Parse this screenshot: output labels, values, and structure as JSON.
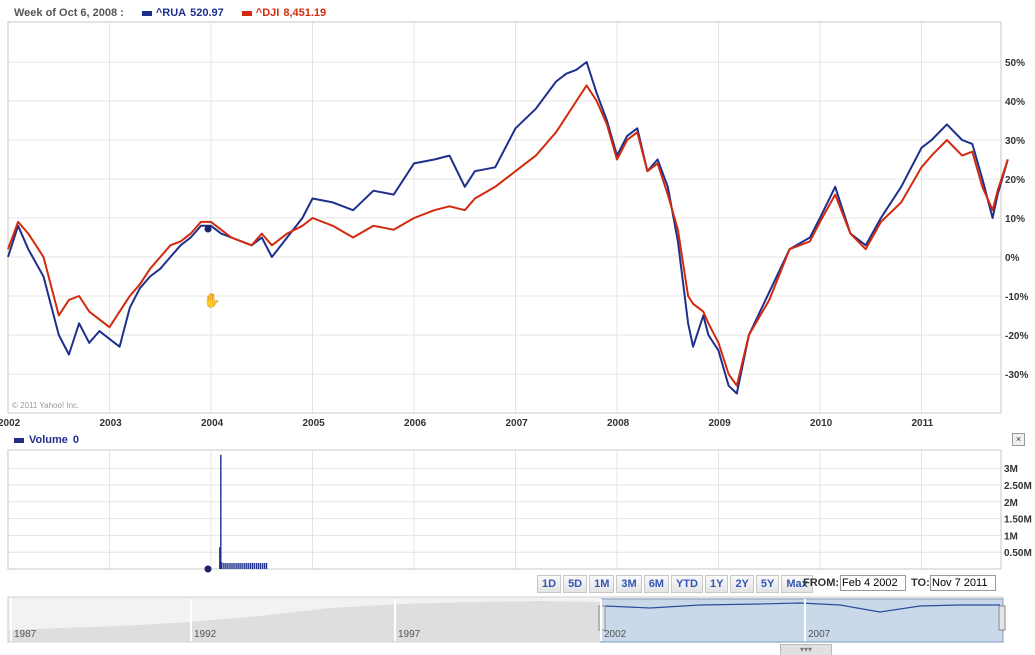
{
  "legend": {
    "period": "Week of Oct 6, 2008 :",
    "series": [
      {
        "label": "^RUA",
        "value": "520.97",
        "color": "#1f2f8c"
      },
      {
        "label": "^DJI",
        "value": "8,451.19",
        "color": "#d32a0e"
      }
    ]
  },
  "copyright": "© 2011 Yahoo! Inc.",
  "volume": {
    "label": "Volume",
    "value": "0",
    "close_label": "×"
  },
  "range_buttons": [
    "1D",
    "5D",
    "1M",
    "3M",
    "6M",
    "YTD",
    "1Y",
    "2Y",
    "5Y",
    "Max"
  ],
  "date_range": {
    "from_label": "FROM:",
    "from_value": "Feb 4 2002",
    "to_label": "TO:",
    "to_value": "Nov 7 2011"
  },
  "navigator": {
    "labels": [
      "1987",
      "1992",
      "1997",
      "2002",
      "2007"
    ]
  },
  "chart_data": [
    {
      "type": "line",
      "title": "",
      "xlabel": "",
      "ylabel": "",
      "x_ticks": [
        "2002",
        "2003",
        "2004",
        "2005",
        "2006",
        "2007",
        "2008",
        "2009",
        "2010",
        "2011"
      ],
      "y_ticks": [
        "50%",
        "40%",
        "30%",
        "20%",
        "10%",
        "0%",
        "-10%",
        "-20%",
        "-30%"
      ],
      "ylim": [
        -40,
        60
      ],
      "xlim": [
        2002.0,
        2011.85
      ],
      "grid": true,
      "series": [
        {
          "name": "^RUA",
          "color": "#1f2f8c",
          "x": [
            2002.0,
            2002.1,
            2002.2,
            2002.35,
            2002.5,
            2002.6,
            2002.7,
            2002.8,
            2002.9,
            2003.0,
            2003.1,
            2003.2,
            2003.3,
            2003.4,
            2003.5,
            2003.6,
            2003.7,
            2003.8,
            2003.9,
            2004.0,
            2004.1,
            2004.2,
            2004.4,
            2004.5,
            2004.6,
            2004.75,
            2004.9,
            2005.0,
            2005.2,
            2005.4,
            2005.6,
            2005.8,
            2006.0,
            2006.2,
            2006.35,
            2006.5,
            2006.6,
            2006.8,
            2007.0,
            2007.2,
            2007.4,
            2007.5,
            2007.6,
            2007.7,
            2007.8,
            2007.9,
            2008.0,
            2008.1,
            2008.2,
            2008.3,
            2008.4,
            2008.5,
            2008.6,
            2008.7,
            2008.75,
            2008.85,
            2008.9,
            2009.0,
            2009.1,
            2009.18,
            2009.3,
            2009.5,
            2009.7,
            2009.9,
            2010.0,
            2010.15,
            2010.3,
            2010.45,
            2010.6,
            2010.8,
            2011.0,
            2011.1,
            2011.25,
            2011.4,
            2011.5,
            2011.6,
            2011.7,
            2011.75,
            2011.85
          ],
          "values": [
            0,
            8,
            2,
            -5,
            -20,
            -25,
            -17,
            -22,
            -19,
            -21,
            -23,
            -13,
            -8,
            -5,
            -3,
            0,
            3,
            5,
            8,
            8,
            6,
            5,
            3,
            5,
            0,
            5,
            10,
            15,
            14,
            12,
            17,
            16,
            24,
            25,
            26,
            18,
            22,
            23,
            33,
            38,
            45,
            47,
            48,
            50,
            42,
            35,
            26,
            31,
            33,
            22,
            25,
            18,
            4,
            -17,
            -23,
            -15,
            -20,
            -24,
            -33,
            -35,
            -20,
            -9,
            2,
            5,
            10,
            18,
            6,
            3,
            10,
            18,
            28,
            30,
            34,
            30,
            29,
            20,
            10,
            16,
            25
          ]
        },
        {
          "name": "^DJI",
          "color": "#d32a0e",
          "x": [
            2002.0,
            2002.1,
            2002.2,
            2002.35,
            2002.5,
            2002.6,
            2002.7,
            2002.8,
            2002.9,
            2003.0,
            2003.1,
            2003.2,
            2003.3,
            2003.4,
            2003.5,
            2003.6,
            2003.7,
            2003.8,
            2003.9,
            2004.0,
            2004.1,
            2004.2,
            2004.4,
            2004.5,
            2004.6,
            2004.75,
            2004.9,
            2005.0,
            2005.2,
            2005.4,
            2005.6,
            2005.8,
            2006.0,
            2006.2,
            2006.35,
            2006.5,
            2006.6,
            2006.8,
            2007.0,
            2007.2,
            2007.4,
            2007.5,
            2007.6,
            2007.7,
            2007.8,
            2007.9,
            2008.0,
            2008.1,
            2008.2,
            2008.3,
            2008.4,
            2008.5,
            2008.6,
            2008.7,
            2008.75,
            2008.85,
            2008.9,
            2009.0,
            2009.1,
            2009.18,
            2009.3,
            2009.5,
            2009.7,
            2009.9,
            2010.0,
            2010.15,
            2010.3,
            2010.45,
            2010.6,
            2010.8,
            2011.0,
            2011.1,
            2011.25,
            2011.4,
            2011.5,
            2011.6,
            2011.7,
            2011.75,
            2011.85
          ],
          "values": [
            2,
            9,
            6,
            0,
            -15,
            -11,
            -10,
            -14,
            -16,
            -18,
            -14,
            -10,
            -7,
            -3,
            0,
            3,
            4,
            6,
            9,
            9,
            7,
            5,
            3,
            6,
            3,
            6,
            8,
            10,
            8,
            5,
            8,
            7,
            10,
            12,
            13,
            12,
            15,
            18,
            22,
            26,
            32,
            36,
            40,
            44,
            40,
            34,
            25,
            30,
            32,
            22,
            24,
            16,
            7,
            -10,
            -12,
            -14,
            -17,
            -22,
            -30,
            -33,
            -20,
            -11,
            2,
            4,
            9,
            16,
            6,
            2,
            9,
            14,
            23,
            26,
            30,
            26,
            27,
            18,
            12,
            17,
            25
          ]
        }
      ]
    },
    {
      "type": "bar",
      "title": "",
      "xlabel": "",
      "ylabel": "",
      "y_ticks": [
        "3M",
        "2.50M",
        "2M",
        "1.50M",
        "1M",
        "0.50M"
      ],
      "ylim": [
        0,
        3.5
      ],
      "x": [
        2004.08,
        2004.09,
        2004.1,
        2004.12,
        2004.14,
        2004.16,
        2004.18,
        2004.2,
        2004.22,
        2004.24,
        2004.26,
        2004.28,
        2004.3,
        2004.32,
        2004.34,
        2004.36,
        2004.38,
        2004.4,
        2004.42,
        2004.44,
        2004.46,
        2004.48,
        2004.5,
        2004.52,
        2004.54
      ],
      "values": [
        0.65,
        3.4,
        0.2,
        0.18,
        0.18,
        0.18,
        0.18,
        0.18,
        0.18,
        0.18,
        0.18,
        0.18,
        0.18,
        0.18,
        0.18,
        0.18,
        0.18,
        0.18,
        0.18,
        0.18,
        0.18,
        0.18,
        0.18,
        0.18,
        0.18
      ],
      "color": "#1f2f8c"
    }
  ]
}
